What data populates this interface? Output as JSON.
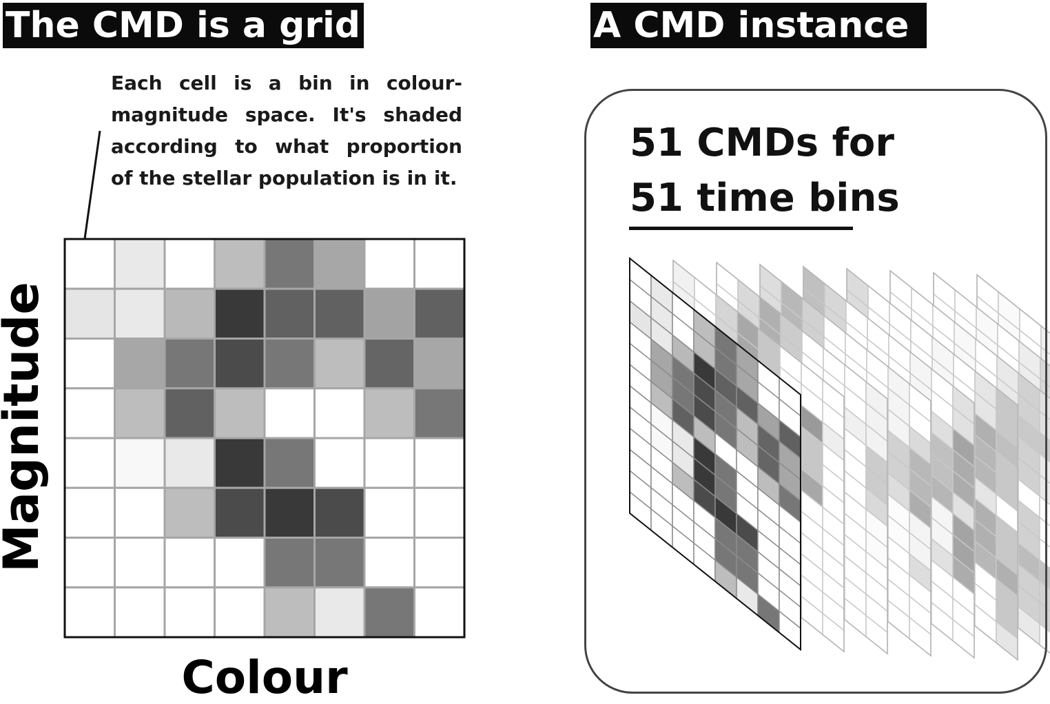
{
  "left_title": "The CMD is a grid",
  "right_title": "A CMD instance",
  "caption_lines": [
    "Each cell is a bin in colour-",
    "magnitude space. It's shaded",
    "according to what proportion",
    "of the stellar population is in it."
  ],
  "y_axis_label": "Magnitude",
  "x_axis_label": "Colour",
  "instance_lines": [
    "51 CMDs for",
    "51 time bins"
  ],
  "grid": {
    "rows": 8,
    "cols": 8,
    "shades": [
      [
        0.0,
        0.1,
        0.0,
        0.3,
        0.62,
        0.4,
        0.0,
        0.0
      ],
      [
        0.12,
        0.1,
        0.32,
        0.9,
        0.72,
        0.72,
        0.42,
        0.72
      ],
      [
        0.0,
        0.4,
        0.62,
        0.82,
        0.62,
        0.3,
        0.7,
        0.4
      ],
      [
        0.0,
        0.3,
        0.72,
        0.3,
        0.0,
        0.0,
        0.3,
        0.62
      ],
      [
        0.0,
        0.03,
        0.1,
        0.9,
        0.62,
        0.0,
        0.0,
        0.0
      ],
      [
        0.0,
        0.0,
        0.3,
        0.82,
        0.9,
        0.82,
        0.0,
        0.0
      ],
      [
        0.0,
        0.0,
        0.0,
        0.0,
        0.62,
        0.62,
        0.0,
        0.0
      ],
      [
        0.0,
        0.0,
        0.0,
        0.0,
        0.3,
        0.1,
        0.62,
        0.0
      ]
    ]
  },
  "stack": {
    "rows": 12,
    "cols": 8,
    "layers": 9
  }
}
